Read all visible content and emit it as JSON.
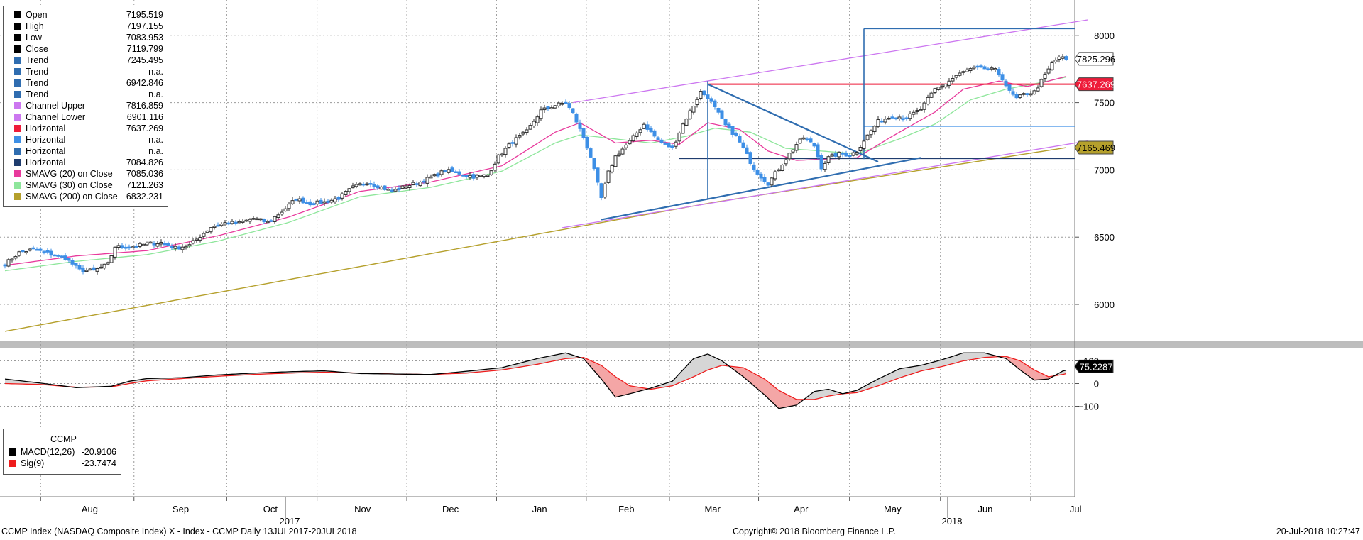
{
  "colors": {
    "bull": "#2e2e2e",
    "bear": "#3d8fe6",
    "trend": "#2f6db0",
    "channel": "#cc77f0",
    "horizontal": "#ee1c3a",
    "sma20": "#e8399c",
    "sma30": "#8ee69b",
    "sma200": "#b5a02c",
    "macd": "#000000",
    "sig": "#ee1c1c"
  },
  "legend": {
    "items": [
      {
        "label": "Open",
        "value": "7195.519",
        "color": "#000000"
      },
      {
        "label": "High",
        "value": "7197.155",
        "color": "#000000"
      },
      {
        "label": "Low",
        "value": "7083.953",
        "color": "#000000"
      },
      {
        "label": "Close",
        "value": "7119.799",
        "color": "#000000"
      },
      {
        "label": "Trend",
        "value": "7245.495",
        "color": "#2f6db0"
      },
      {
        "label": "Trend",
        "value": "n.a.",
        "color": "#2f6db0"
      },
      {
        "label": "Trend",
        "value": "6942.846",
        "color": "#2f6db0"
      },
      {
        "label": "Trend",
        "value": "n.a.",
        "color": "#2f6db0"
      },
      {
        "label": "Channel Upper",
        "value": "7816.859",
        "color": "#cc77f0"
      },
      {
        "label": "Channel Lower",
        "value": "6901.116",
        "color": "#cc77f0"
      },
      {
        "label": "Horizontal",
        "value": "7637.269",
        "color": "#ee1c3a"
      },
      {
        "label": "Horizontal",
        "value": "n.a.",
        "color": "#3d8fe6"
      },
      {
        "label": "Horizontal",
        "value": "n.a.",
        "color": "#2f6db0"
      },
      {
        "label": "Horizontal",
        "value": "7084.826",
        "color": "#1f3c6e"
      },
      {
        "label": "SMAVG (20) on Close",
        "value": "7085.036",
        "color": "#e8399c"
      },
      {
        "label": "SMAVG (30) on Close",
        "value": "7121.263",
        "color": "#8ee69b"
      },
      {
        "label": "SMAVG (200) on Close",
        "value": "6832.231",
        "color": "#b5a02c"
      }
    ]
  },
  "macd_legend": {
    "title": "CCMP",
    "items": [
      {
        "label": "MACD(12,26)",
        "value": "-20.9106",
        "color": "#000000"
      },
      {
        "label": "Sig(9)",
        "value": "-23.7474",
        "color": "#ee1c1c"
      }
    ]
  },
  "footer": {
    "left": "CCMP Index (NASDAQ Composite Index) X - Index - CCMP  Daily 13JUL2017-20JUL2018",
    "center": "Copyright© 2018 Bloomberg Finance L.P.",
    "right": "20-Jul-2018 10:27:47"
  },
  "chart_data": [
    {
      "type": "candlestick",
      "y_ticks": [
        6000,
        6500,
        7000,
        7500,
        8000
      ],
      "ylim": [
        5740,
        8230
      ],
      "x_labels": [
        "Aug",
        "Sep",
        "Oct",
        "Nov",
        "Dec",
        "Jan",
        "Feb",
        "Mar",
        "Apr",
        "May",
        "Jun",
        "Jul"
      ],
      "year_labels": [
        "2017",
        "2018"
      ],
      "price_labels": [
        {
          "value": "7825.296",
          "y": 7825.296,
          "bg": "#ffffff",
          "fg": "#000000"
        },
        {
          "value": "7637.269",
          "y": 7637.269,
          "bg": "#ee1c3a",
          "fg": "#ffffff"
        },
        {
          "value": "7165.469",
          "y": 7165.469,
          "bg": "#b5a02c",
          "fg": "#000000"
        }
      ],
      "close_anchors": [
        [
          0,
          6300
        ],
        [
          4,
          6385
        ],
        [
          8,
          6410
        ],
        [
          12,
          6380
        ],
        [
          17,
          6345
        ],
        [
          21,
          6255
        ],
        [
          25,
          6250
        ],
        [
          29,
          6300
        ],
        [
          31,
          6430
        ],
        [
          35,
          6425
        ],
        [
          40,
          6450
        ],
        [
          44,
          6460
        ],
        [
          48,
          6420
        ],
        [
          52,
          6440
        ],
        [
          58,
          6575
        ],
        [
          62,
          6605
        ],
        [
          66,
          6605
        ],
        [
          70,
          6640
        ],
        [
          74,
          6610
        ],
        [
          78,
          6690
        ],
        [
          82,
          6785
        ],
        [
          86,
          6750
        ],
        [
          90,
          6760
        ],
        [
          94,
          6790
        ],
        [
          98,
          6870
        ],
        [
          102,
          6910
        ],
        [
          106,
          6870
        ],
        [
          109,
          6840
        ],
        [
          113,
          6880
        ],
        [
          117,
          6910
        ],
        [
          121,
          6955
        ],
        [
          124,
          6995
        ],
        [
          128,
          6975
        ],
        [
          132,
          6950
        ],
        [
          136,
          6960
        ],
        [
          139,
          7100
        ],
        [
          143,
          7210
        ],
        [
          147,
          7285
        ],
        [
          151,
          7440
        ],
        [
          155,
          7480
        ],
        [
          158,
          7500
        ],
        [
          160,
          7420
        ],
        [
          163,
          7240
        ],
        [
          165,
          7100
        ],
        [
          168,
          6790
        ],
        [
          170,
          6980
        ],
        [
          172,
          7100
        ],
        [
          176,
          7210
        ],
        [
          180,
          7340
        ],
        [
          184,
          7220
        ],
        [
          188,
          7160
        ],
        [
          191,
          7340
        ],
        [
          194,
          7480
        ],
        [
          196,
          7580
        ],
        [
          198,
          7540
        ],
        [
          200,
          7460
        ],
        [
          203,
          7330
        ],
        [
          206,
          7250
        ],
        [
          209,
          7110
        ],
        [
          211,
          7010
        ],
        [
          213,
          6950
        ],
        [
          215,
          6900
        ],
        [
          218,
          7010
        ],
        [
          221,
          7120
        ],
        [
          223,
          7190
        ],
        [
          225,
          7240
        ],
        [
          228,
          7180
        ],
        [
          230,
          7020
        ],
        [
          232,
          7090
        ],
        [
          235,
          7120
        ],
        [
          238,
          7110
        ],
        [
          240,
          7140
        ],
        [
          242,
          7220
        ],
        [
          246,
          7360
        ],
        [
          250,
          7400
        ],
        [
          254,
          7390
        ],
        [
          258,
          7450
        ],
        [
          262,
          7600
        ],
        [
          265,
          7640
        ],
        [
          268,
          7700
        ],
        [
          271,
          7740
        ],
        [
          274,
          7760
        ],
        [
          277,
          7750
        ],
        [
          279,
          7740
        ],
        [
          281,
          7680
        ],
        [
          283,
          7580
        ],
        [
          285,
          7530
        ],
        [
          287,
          7560
        ],
        [
          290,
          7580
        ],
        [
          292,
          7660
        ],
        [
          295,
          7790
        ],
        [
          297,
          7840
        ],
        [
          299,
          7820
        ]
      ],
      "sma200_anchors": [
        [
          0,
          5800
        ],
        [
          160,
          6570
        ],
        [
          200,
          6760
        ],
        [
          299,
          7165.469
        ]
      ],
      "sma20_anchors": [
        [
          0,
          6290
        ],
        [
          20,
          6360
        ],
        [
          40,
          6400
        ],
        [
          60,
          6510
        ],
        [
          80,
          6650
        ],
        [
          100,
          6840
        ],
        [
          120,
          6910
        ],
        [
          140,
          7030
        ],
        [
          155,
          7280
        ],
        [
          162,
          7350
        ],
        [
          172,
          7200
        ],
        [
          182,
          7220
        ],
        [
          190,
          7190
        ],
        [
          198,
          7350
        ],
        [
          207,
          7300
        ],
        [
          215,
          7140
        ],
        [
          223,
          7070
        ],
        [
          231,
          7080
        ],
        [
          240,
          7090
        ],
        [
          250,
          7250
        ],
        [
          262,
          7430
        ],
        [
          270,
          7600
        ],
        [
          280,
          7660
        ],
        [
          288,
          7620
        ],
        [
          294,
          7660
        ],
        [
          299,
          7695
        ]
      ],
      "sma30_anchors": [
        [
          0,
          6250
        ],
        [
          20,
          6320
        ],
        [
          40,
          6370
        ],
        [
          60,
          6470
        ],
        [
          80,
          6610
        ],
        [
          100,
          6800
        ],
        [
          120,
          6870
        ],
        [
          140,
          6990
        ],
        [
          155,
          7200
        ],
        [
          162,
          7260
        ],
        [
          172,
          7230
        ],
        [
          182,
          7200
        ],
        [
          192,
          7250
        ],
        [
          200,
          7310
        ],
        [
          210,
          7280
        ],
        [
          220,
          7160
        ],
        [
          230,
          7140
        ],
        [
          240,
          7120
        ],
        [
          252,
          7230
        ],
        [
          262,
          7340
        ],
        [
          272,
          7520
        ],
        [
          282,
          7600
        ],
        [
          292,
          7650
        ],
        [
          299,
          7690
        ]
      ],
      "trend_lines": [
        {
          "name": "upper-triangle-trend",
          "from": [
            198,
            7637.269
          ],
          "to": [
            246,
            7060
          ]
        },
        {
          "name": "lower-triangle-trend",
          "from": [
            168,
            6630
          ],
          "to": [
            258,
            7090
          ]
        }
      ],
      "channel": {
        "upper_from": [
          160,
          7500
        ],
        "upper_to": [
          305,
          8115
        ],
        "lower_from": [
          157,
          6570
        ],
        "lower_to": [
          305,
          7215
        ]
      },
      "horizontals": [
        {
          "value": 7637.269,
          "from": 198,
          "to": 305,
          "color": "#ee1c3a"
        },
        {
          "value": 8050,
          "from": 242,
          "to": 305,
          "color": "#2f6db0"
        },
        {
          "value": 7325,
          "from": 242,
          "to": 305,
          "color": "#3d8fe6"
        },
        {
          "value": 7084.826,
          "from": 190,
          "to": 305,
          "color": "#1f3c6e"
        }
      ],
      "verticals": [
        {
          "x": 198,
          "from": 6780,
          "to": 7660
        },
        {
          "x": 242,
          "from": 7080,
          "to": 8050
        }
      ]
    },
    {
      "type": "line",
      "title": "CCMP",
      "y_ticks": [
        -100,
        0,
        100
      ],
      "ylim": [
        -140,
        160
      ],
      "x_labels": [
        "Aug",
        "Sep",
        "Oct",
        "Nov",
        "Dec",
        "Jan",
        "Feb",
        "Mar",
        "Apr",
        "May",
        "Jun",
        "Jul"
      ],
      "series": [
        {
          "name": "MACD(12,26)",
          "last_label": "75.2287",
          "anchors": [
            [
              0,
              20
            ],
            [
              10,
              2
            ],
            [
              20,
              -18
            ],
            [
              30,
              -12
            ],
            [
              35,
              10
            ],
            [
              40,
              22
            ],
            [
              50,
              26
            ],
            [
              60,
              38
            ],
            [
              70,
              46
            ],
            [
              80,
              52
            ],
            [
              90,
              56
            ],
            [
              100,
              44
            ],
            [
              110,
              42
            ],
            [
              120,
              40
            ],
            [
              130,
              54
            ],
            [
              140,
              70
            ],
            [
              150,
              110
            ],
            [
              158,
              135
            ],
            [
              163,
              110
            ],
            [
              168,
              20
            ],
            [
              172,
              -60
            ],
            [
              176,
              -45
            ],
            [
              182,
              -20
            ],
            [
              188,
              10
            ],
            [
              194,
              110
            ],
            [
              198,
              130
            ],
            [
              202,
              100
            ],
            [
              208,
              30
            ],
            [
              214,
              -50
            ],
            [
              218,
              -110
            ],
            [
              223,
              -95
            ],
            [
              228,
              -35
            ],
            [
              232,
              -25
            ],
            [
              236,
              -45
            ],
            [
              240,
              -30
            ],
            [
              246,
              20
            ],
            [
              252,
              65
            ],
            [
              258,
              80
            ],
            [
              264,
              105
            ],
            [
              270,
              135
            ],
            [
              276,
              135
            ],
            [
              282,
              110
            ],
            [
              286,
              60
            ],
            [
              290,
              15
            ],
            [
              294,
              20
            ],
            [
              298,
              55
            ],
            [
              303,
              75
            ]
          ]
        },
        {
          "name": "Sig(9)",
          "anchors": [
            [
              0,
              0
            ],
            [
              10,
              -4
            ],
            [
              20,
              -16
            ],
            [
              30,
              -15
            ],
            [
              35,
              0
            ],
            [
              40,
              12
            ],
            [
              50,
              22
            ],
            [
              60,
              32
            ],
            [
              70,
              40
            ],
            [
              80,
              46
            ],
            [
              90,
              50
            ],
            [
              100,
              46
            ],
            [
              110,
              42
            ],
            [
              120,
              40
            ],
            [
              130,
              46
            ],
            [
              140,
              60
            ],
            [
              150,
              85
            ],
            [
              158,
              110
            ],
            [
              163,
              115
            ],
            [
              168,
              80
            ],
            [
              172,
              30
            ],
            [
              176,
              -10
            ],
            [
              182,
              -25
            ],
            [
              188,
              -10
            ],
            [
              194,
              30
            ],
            [
              198,
              60
            ],
            [
              202,
              80
            ],
            [
              208,
              70
            ],
            [
              214,
              20
            ],
            [
              218,
              -30
            ],
            [
              223,
              -70
            ],
            [
              228,
              -70
            ],
            [
              232,
              -55
            ],
            [
              236,
              -45
            ],
            [
              240,
              -40
            ],
            [
              246,
              -10
            ],
            [
              252,
              25
            ],
            [
              258,
              55
            ],
            [
              264,
              75
            ],
            [
              270,
              100
            ],
            [
              276,
              115
            ],
            [
              282,
              120
            ],
            [
              286,
              100
            ],
            [
              290,
              60
            ],
            [
              294,
              30
            ],
            [
              298,
              40
            ],
            [
              303,
              58
            ]
          ]
        }
      ]
    }
  ]
}
